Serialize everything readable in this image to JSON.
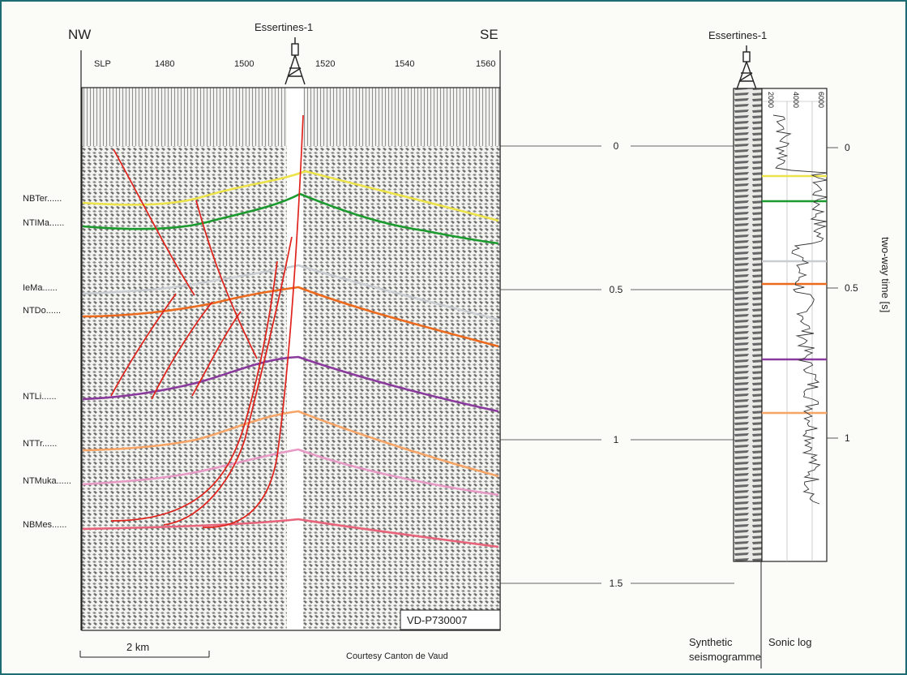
{
  "orientation": {
    "left": "NW",
    "right": "SE"
  },
  "well": {
    "name": "Essertines-1",
    "name_right": "Essertines-1"
  },
  "slp": {
    "label": "SLP",
    "ticks": [
      "1480",
      "1500",
      "1520",
      "1540",
      "1560"
    ]
  },
  "horizons": [
    {
      "name": "NBTer",
      "color": "#ece24a"
    },
    {
      "name": "NTIMa",
      "color": "#1b9a2e"
    },
    {
      "name": "IeMa",
      "color": "#c9cdd2"
    },
    {
      "name": "NTDo",
      "color": "#ec6a1e"
    },
    {
      "name": "NTLi",
      "color": "#8a3a9c"
    },
    {
      "name": "NTTr",
      "color": "#f7a567"
    },
    {
      "name": "NTMuka",
      "color": "#e89ac6"
    },
    {
      "name": "NBMes",
      "color": "#e8647a"
    }
  ],
  "fault_color": "#e0231c",
  "time_labels": [
    "0",
    "0.5",
    "1",
    "1.5"
  ],
  "right_time_labels": [
    "0",
    "0.5",
    "1"
  ],
  "axis_label": "two-way time [s]",
  "sonic_ticks": [
    "2000",
    "4000",
    "6000"
  ],
  "section_id": "VD-P730007",
  "scale_label": "2 km",
  "credit": "Courtesy Canton de Vaud",
  "panel_labels": {
    "synthetic_line1": "Synthetic",
    "synthetic_line2": "seismogramme",
    "sonic": "Sonic log"
  }
}
